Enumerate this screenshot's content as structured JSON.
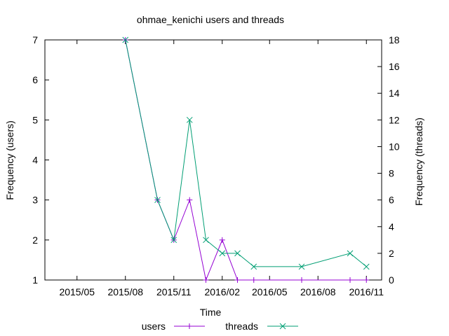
{
  "chart_data": {
    "type": "line",
    "title": "ohmae_kenichi users and threads",
    "xlabel": "Time",
    "ylabel": "Frequency (users)",
    "y2label": "Frequency (threads)",
    "x_ticks": [
      "2015/05",
      "2015/08",
      "2015/11",
      "2016/02",
      "2016/05",
      "2016/08",
      "2016/11"
    ],
    "y_ticks": [
      "1",
      "2",
      "3",
      "4",
      "5",
      "6",
      "7"
    ],
    "y2_ticks": [
      "0",
      "2",
      "4",
      "6",
      "8",
      "10",
      "12",
      "14",
      "16",
      "18"
    ],
    "ylim": [
      1,
      7
    ],
    "y2lim": [
      0,
      18
    ],
    "xlim": [
      "2015-03-01",
      "2016-11-30"
    ],
    "grid": false,
    "legend_position": "bottom-center",
    "colors": {
      "users": "#9400d3",
      "threads": "#009e73"
    },
    "series": [
      {
        "name": "users",
        "axis": "left",
        "marker": "plus",
        "points": [
          {
            "x": "2015-08-01",
            "y": 7
          },
          {
            "x": "2015-10-01",
            "y": 3
          },
          {
            "x": "2015-11-01",
            "y": 2
          },
          {
            "x": "2015-12-01",
            "y": 3
          },
          {
            "x": "2016-01-01",
            "y": 1
          },
          {
            "x": "2016-02-01",
            "y": 2
          },
          {
            "x": "2016-03-01",
            "y": 1
          },
          {
            "x": "2016-04-01",
            "y": 1
          },
          {
            "x": "2016-07-01",
            "y": 1
          },
          {
            "x": "2016-10-01",
            "y": 1
          },
          {
            "x": "2016-11-01",
            "y": 1
          }
        ]
      },
      {
        "name": "threads",
        "axis": "right",
        "marker": "cross",
        "points": [
          {
            "x": "2015-08-01",
            "y": 18
          },
          {
            "x": "2015-10-01",
            "y": 6
          },
          {
            "x": "2015-11-01",
            "y": 3
          },
          {
            "x": "2015-12-01",
            "y": 12
          },
          {
            "x": "2016-01-01",
            "y": 3
          },
          {
            "x": "2016-02-01",
            "y": 2
          },
          {
            "x": "2016-03-01",
            "y": 2
          },
          {
            "x": "2016-04-01",
            "y": 1
          },
          {
            "x": "2016-07-01",
            "y": 1
          },
          {
            "x": "2016-10-01",
            "y": 2
          },
          {
            "x": "2016-11-01",
            "y": 1
          }
        ]
      }
    ]
  }
}
